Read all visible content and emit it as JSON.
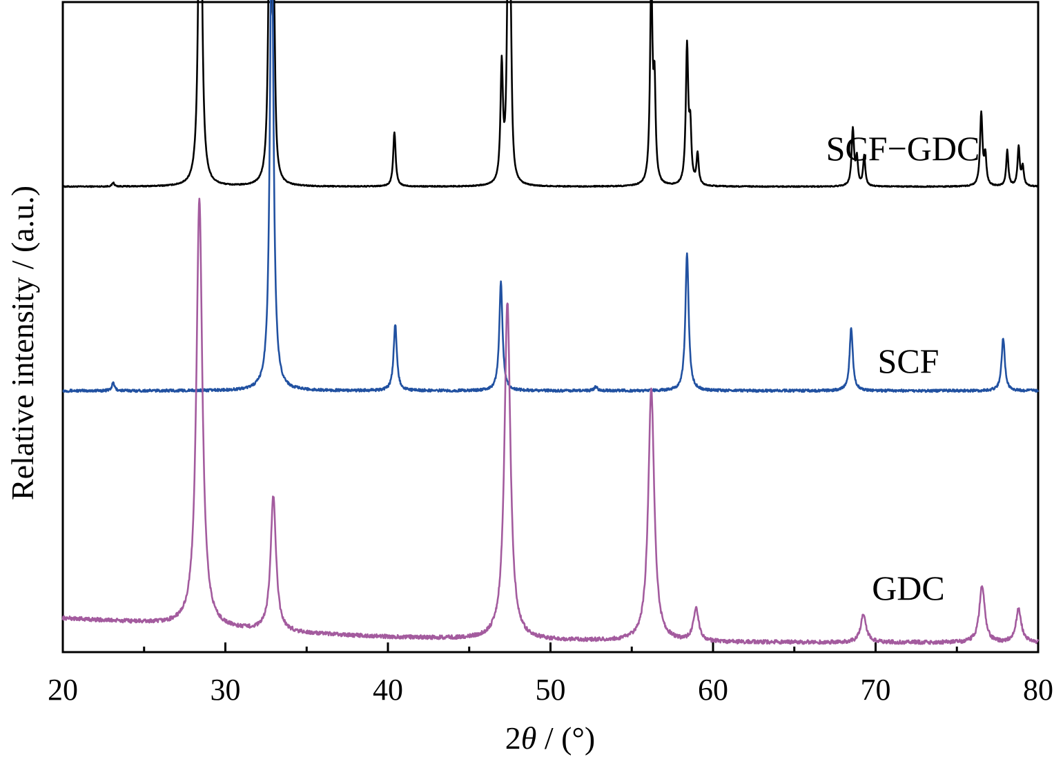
{
  "chart_data": {
    "type": "line",
    "xlabel_prefix": "2",
    "xlabel_symbol": "θ",
    "xlabel_suffix": " / (°)",
    "ylabel": "Relative intensity / (a.u.)",
    "xlim": [
      20,
      80
    ],
    "x_ticks": [
      "20",
      "30",
      "40",
      "50",
      "60",
      "70",
      "80"
    ],
    "x_minor_step": 5,
    "y_ticks": [],
    "ylim": [
      0,
      1
    ],
    "grid": false,
    "legend": "none",
    "series": [
      {
        "name": "SCF−GDC",
        "color": "#000000",
        "baseline": 0.716,
        "noise": 0.0008,
        "peaks": [
          {
            "x": 23.1,
            "h": 0.006,
            "w": 0.08
          },
          {
            "x": 28.45,
            "h": 0.704,
            "w": 0.11
          },
          {
            "x": 32.75,
            "h": 0.606,
            "w": 0.1
          },
          {
            "x": 33.0,
            "h": 0.21,
            "w": 0.08
          },
          {
            "x": 40.4,
            "h": 0.084,
            "w": 0.09
          },
          {
            "x": 47.0,
            "h": 0.178,
            "w": 0.09
          },
          {
            "x": 47.4,
            "h": 0.39,
            "w": 0.09
          },
          {
            "x": 47.55,
            "h": 0.2,
            "w": 0.08
          },
          {
            "x": 56.2,
            "h": 0.312,
            "w": 0.09
          },
          {
            "x": 56.4,
            "h": 0.14,
            "w": 0.08
          },
          {
            "x": 58.4,
            "h": 0.212,
            "w": 0.09
          },
          {
            "x": 58.6,
            "h": 0.08,
            "w": 0.08
          },
          {
            "x": 59.05,
            "h": 0.048,
            "w": 0.08
          },
          {
            "x": 68.6,
            "h": 0.087,
            "w": 0.09
          },
          {
            "x": 68.85,
            "h": 0.04,
            "w": 0.08
          },
          {
            "x": 69.3,
            "h": 0.046,
            "w": 0.08
          },
          {
            "x": 76.5,
            "h": 0.112,
            "w": 0.09
          },
          {
            "x": 76.75,
            "h": 0.045,
            "w": 0.08
          },
          {
            "x": 78.1,
            "h": 0.055,
            "w": 0.08
          },
          {
            "x": 78.8,
            "h": 0.06,
            "w": 0.08
          },
          {
            "x": 79.05,
            "h": 0.03,
            "w": 0.08
          }
        ]
      },
      {
        "name": "SCF",
        "color": "#2151a1",
        "baseline": 0.402,
        "noise": 0.002,
        "peaks": [
          {
            "x": 23.1,
            "h": 0.012,
            "w": 0.1
          },
          {
            "x": 32.85,
            "h": 0.747,
            "w": 0.13
          },
          {
            "x": 40.45,
            "h": 0.102,
            "w": 0.12
          },
          {
            "x": 46.95,
            "h": 0.167,
            "w": 0.12
          },
          {
            "x": 52.8,
            "h": 0.006,
            "w": 0.12
          },
          {
            "x": 58.4,
            "h": 0.213,
            "w": 0.12
          },
          {
            "x": 68.5,
            "h": 0.097,
            "w": 0.12
          },
          {
            "x": 77.85,
            "h": 0.081,
            "w": 0.12
          }
        ]
      },
      {
        "name": "GDC",
        "color": "#a35b9e",
        "baseline_points": [
          [
            20,
            0.052
          ],
          [
            25,
            0.045
          ],
          [
            30,
            0.035
          ],
          [
            35,
            0.028
          ],
          [
            40,
            0.023
          ],
          [
            45,
            0.02
          ],
          [
            50,
            0.018
          ],
          [
            60,
            0.015
          ],
          [
            70,
            0.015
          ],
          [
            80,
            0.014
          ]
        ],
        "noise": 0.003,
        "peaks": [
          {
            "x": 28.4,
            "h": 0.657,
            "w": 0.22
          },
          {
            "x": 32.95,
            "h": 0.208,
            "w": 0.2
          },
          {
            "x": 47.35,
            "h": 0.52,
            "w": 0.22
          },
          {
            "x": 56.2,
            "h": 0.389,
            "w": 0.22
          },
          {
            "x": 58.95,
            "h": 0.05,
            "w": 0.2
          },
          {
            "x": 69.25,
            "h": 0.044,
            "w": 0.2
          },
          {
            "x": 76.55,
            "h": 0.088,
            "w": 0.2
          },
          {
            "x": 78.8,
            "h": 0.052,
            "w": 0.2
          }
        ]
      }
    ]
  }
}
